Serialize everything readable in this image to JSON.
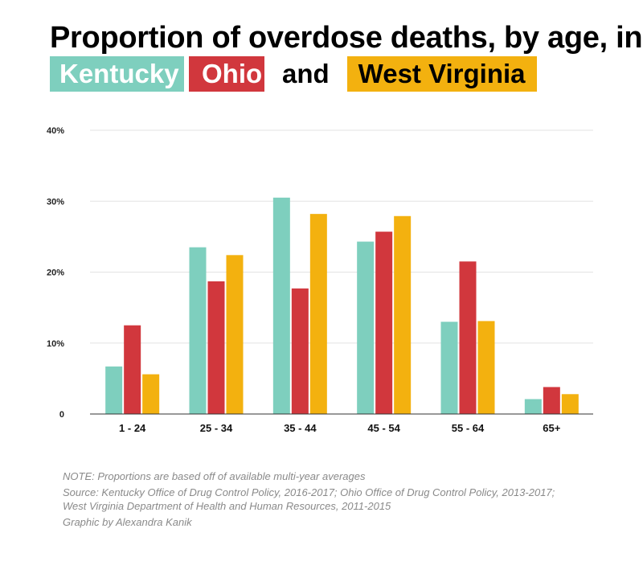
{
  "title": {
    "line1": "Proportion of overdose deaths, by age, in",
    "kentucky": "Kentucky",
    "ohio": "Ohio",
    "and": "and",
    "west_virginia": "West Virginia"
  },
  "colors": {
    "kentucky": "#7ecfbe",
    "ohio": "#d1373d",
    "west_virginia": "#f3b10f"
  },
  "chart_data": {
    "type": "bar",
    "categories": [
      "1 - 24",
      "25 - 34",
      "35 - 44",
      "45 - 54",
      "55 - 64",
      "65+"
    ],
    "series": [
      {
        "name": "Kentucky",
        "values": [
          6.7,
          23.5,
          30.5,
          24.3,
          13.0,
          2.1
        ]
      },
      {
        "name": "Ohio",
        "values": [
          12.5,
          18.7,
          17.7,
          25.7,
          21.5,
          3.8
        ]
      },
      {
        "name": "West Virginia",
        "values": [
          5.6,
          22.4,
          28.2,
          27.9,
          13.1,
          2.8
        ]
      }
    ],
    "ylim": [
      0,
      40
    ],
    "yticks": [
      0,
      10,
      20,
      30,
      40
    ],
    "ytick_labels": [
      "0",
      "10%",
      "20%",
      "30%",
      "40%"
    ],
    "grid": true,
    "legend": "title"
  },
  "notes": {
    "note": "NOTE: Proportions are based off of available multi-year averages",
    "source_line1": "Source: Kentucky Office of Drug Control Policy, 2016-2017; Ohio Office of Drug Control Policy, 2013-2017;",
    "source_line2": "West Virginia Department of Health and Human Resources, 2011-2015",
    "credit": "Graphic by Alexandra Kanik"
  }
}
